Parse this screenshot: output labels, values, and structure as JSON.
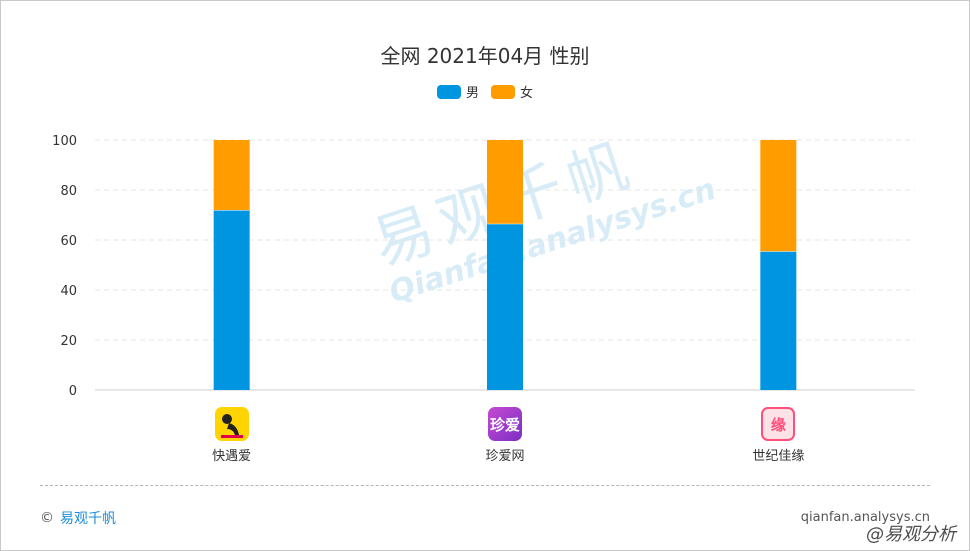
{
  "title": "全网 2021年04月 性别",
  "legend": [
    {
      "label": "男",
      "color": "#0095e0"
    },
    {
      "label": "女",
      "color": "#ff9c00"
    }
  ],
  "chart_data": {
    "type": "bar",
    "stacked": true,
    "title": "全网 2021年04月 性别",
    "xlabel": "",
    "ylabel": "",
    "categories": [
      "快遇爱",
      "珍爱网",
      "世纪佳缘"
    ],
    "series": [
      {
        "name": "男",
        "values": [
          72,
          66.5,
          55.5
        ],
        "color": "#0095e0"
      },
      {
        "name": "女",
        "values": [
          28,
          33.5,
          44.5
        ],
        "color": "#ff9c00"
      }
    ],
    "ylim": [
      0,
      100
    ],
    "yticks": [
      "0",
      "20",
      "40",
      "60",
      "80",
      "100"
    ],
    "grid": true,
    "legend_position": "top-center"
  },
  "apps": [
    {
      "name": "快遇爱",
      "icon": "kuaiyuai-app-icon",
      "icon_text": "",
      "color": "#ffd400"
    },
    {
      "name": "珍爱网",
      "icon": "zhenai-app-icon",
      "icon_text": "珍爱",
      "color": "#b040c8"
    },
    {
      "name": "世纪佳缘",
      "icon": "jiayuan-app-icon",
      "icon_text": "缘",
      "color": "#ff4f7b"
    }
  ],
  "watermark": {
    "cn": "易观千帆",
    "en": "Qianfan.analysys.cn"
  },
  "footer": {
    "copyright": "©",
    "brand": "易观千帆",
    "site": "qianfan.analysys.cn",
    "badge": "@易观分析"
  }
}
